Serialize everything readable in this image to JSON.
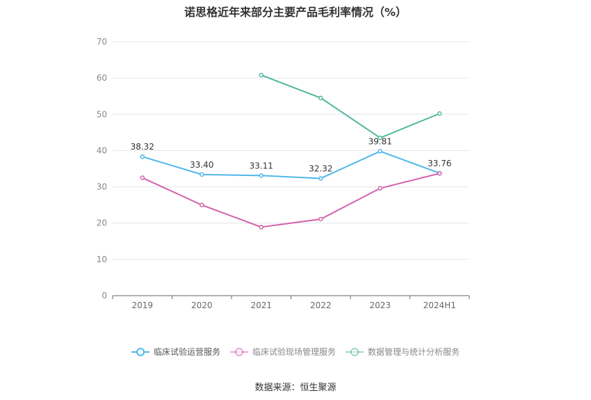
{
  "chart_data": {
    "type": "line",
    "title": "诺思格近年来部分主要产品毛利率情况（%）",
    "categories": [
      "2019",
      "2020",
      "2021",
      "2022",
      "2023",
      "2024H1"
    ],
    "ylim": [
      0,
      70
    ],
    "yticks": [
      0,
      10,
      20,
      30,
      40,
      50,
      60,
      70
    ],
    "grid": true,
    "legend_position": "bottom",
    "series": [
      {
        "name": "临床试验运营服务",
        "color": "#4db8ea",
        "values": [
          38.32,
          33.4,
          33.11,
          32.32,
          39.81,
          33.76
        ],
        "labels": [
          "38.32",
          "33.40",
          "33.11",
          "32.32",
          "39.81",
          "33.76"
        ]
      },
      {
        "name": "临床试验现场管理服务",
        "color": "#d462ab",
        "values": [
          32.5,
          25.0,
          18.9,
          21.1,
          29.6,
          33.7
        ]
      },
      {
        "name": "数据管理与统计分析服务",
        "color": "#4db89a",
        "values": [
          null,
          null,
          60.8,
          54.5,
          43.5,
          50.2
        ]
      }
    ]
  },
  "source": "数据来源：恒生聚源"
}
